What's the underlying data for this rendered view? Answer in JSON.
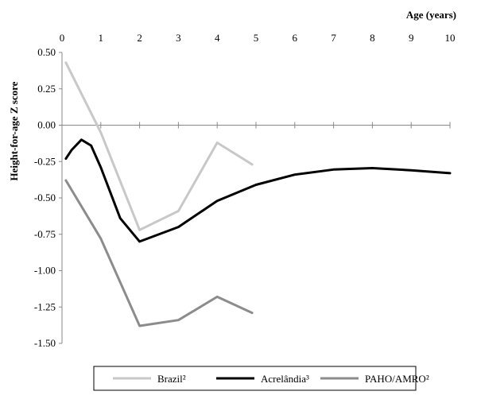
{
  "chart_data": {
    "type": "line",
    "xlabel": "Age (years)",
    "ylabel": "Height-for-age Z score",
    "xlim": [
      0,
      10
    ],
    "ylim": [
      -1.5,
      0.5
    ],
    "x_ticks": [
      "0",
      "1",
      "2",
      "3",
      "4",
      "5",
      "6",
      "7",
      "8",
      "9",
      "10"
    ],
    "y_ticks": [
      "0.50",
      "0.25",
      "0.00",
      "-0.25",
      "-0.50",
      "-0.75",
      "-1.00",
      "-1.25",
      "-1.50"
    ],
    "grid": false,
    "legend_position": "bottom",
    "series": [
      {
        "name": "Brazil²",
        "color": "#c8c8c8",
        "points": [
          [
            0.1,
            0.43
          ],
          [
            1.0,
            -0.05
          ],
          [
            2.0,
            -0.72
          ],
          [
            3.0,
            -0.59
          ],
          [
            4.0,
            -0.12
          ],
          [
            4.9,
            -0.27
          ]
        ]
      },
      {
        "name": "Acrelândia³",
        "color": "#000000",
        "points": [
          [
            0.1,
            -0.23
          ],
          [
            0.25,
            -0.17
          ],
          [
            0.5,
            -0.1
          ],
          [
            0.75,
            -0.14
          ],
          [
            1.0,
            -0.29
          ],
          [
            1.5,
            -0.64
          ],
          [
            2.0,
            -0.8
          ],
          [
            3.0,
            -0.7
          ],
          [
            4.0,
            -0.52
          ],
          [
            5.0,
            -0.41
          ],
          [
            6.0,
            -0.34
          ],
          [
            7.0,
            -0.305
          ],
          [
            8.0,
            -0.295
          ],
          [
            9.0,
            -0.31
          ],
          [
            10.0,
            -0.33
          ]
        ]
      },
      {
        "name": "PAHO/AMRO²",
        "color": "#8c8c8c",
        "points": [
          [
            0.1,
            -0.38
          ],
          [
            1.0,
            -0.78
          ],
          [
            2.0,
            -1.38
          ],
          [
            3.0,
            -1.34
          ],
          [
            4.0,
            -1.18
          ],
          [
            4.9,
            -1.29
          ]
        ]
      }
    ]
  }
}
